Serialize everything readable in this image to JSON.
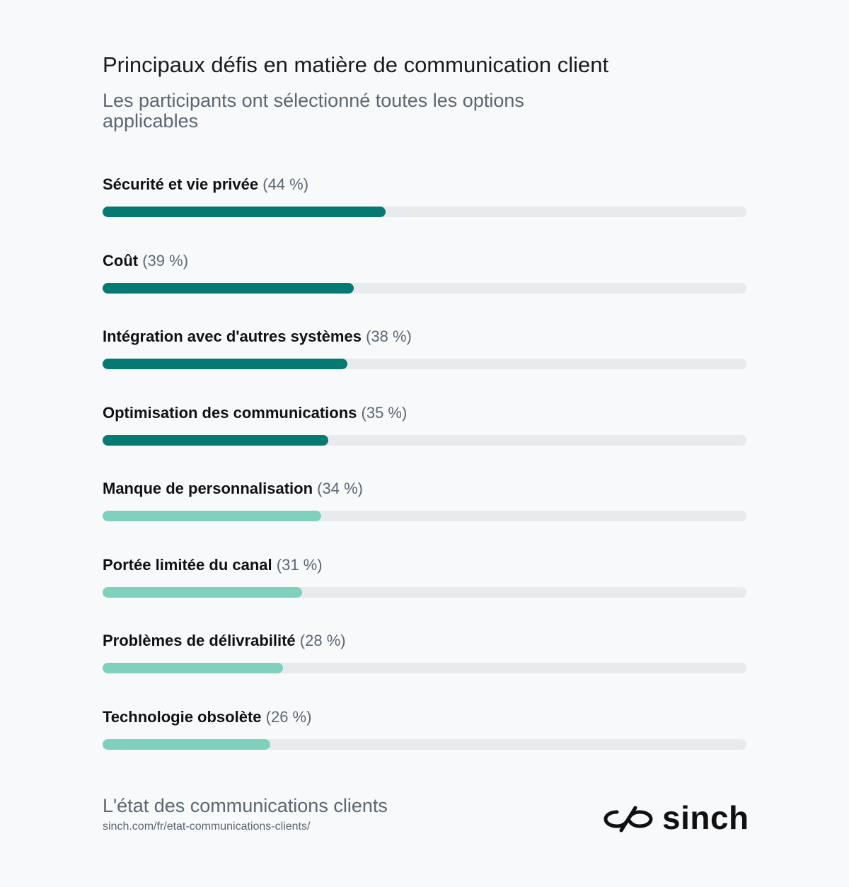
{
  "header": {
    "title": "Principaux défis en matière de communication client",
    "subtitle": "Les participants ont sélectionné toutes les options applicables"
  },
  "colors": {
    "dark_teal": "#057a72",
    "light_teal": "#7fd1bd",
    "track": "#e8ebee",
    "text": "#111111",
    "muted_text": "#5c6670",
    "background": "#f7f9fb"
  },
  "chart_data": {
    "type": "bar",
    "orientation": "horizontal",
    "title": "Principaux défis en matière de communication client",
    "subtitle": "Les participants ont sélectionné toutes les options applicables",
    "xlim": [
      0,
      100
    ],
    "grid": false,
    "categories": [
      "Sécurité et vie privée",
      "Coût",
      "Intégration avec d'autres systèmes",
      "Optimisation des communications",
      "Manque de personnalisation",
      "Portée limitée du canal",
      "Problèmes de délivrabilité",
      "Technologie obsolète"
    ],
    "values": [
      44,
      39,
      38,
      35,
      34,
      31,
      28,
      26
    ],
    "value_labels": [
      "(44 %)",
      "(39 %)",
      "(38 %)",
      "(35 %)",
      "(34 %)",
      "(31 %)",
      "(28 %)",
      "(26 %)"
    ],
    "bar_colors": [
      "#057a72",
      "#057a72",
      "#057a72",
      "#057a72",
      "#7fd1bd",
      "#7fd1bd",
      "#7fd1bd",
      "#7fd1bd"
    ]
  },
  "footer": {
    "title": "L'état des communications clients",
    "url": "sinch.com/fr/etat-communications-clients/"
  },
  "logo": {
    "text": "sinch",
    "icon": "sinch-infinity-icon"
  }
}
